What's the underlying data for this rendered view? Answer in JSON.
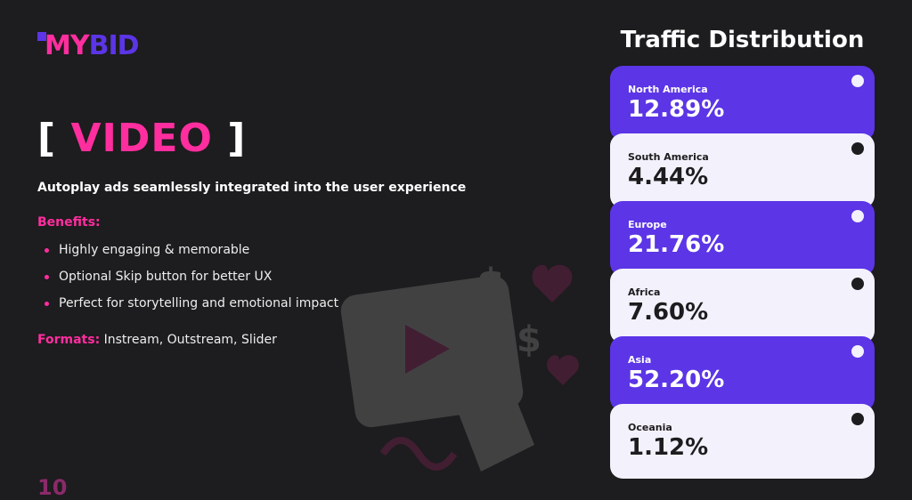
{
  "logo": {
    "part1": "MY",
    "part2": "BID"
  },
  "slide": {
    "title_open": "[",
    "title_word": "VIDEO",
    "title_close": "]",
    "subtitle": "Autoplay ads seamlessly integrated into the user experience",
    "benefits_label": "Benefits:",
    "benefits": [
      "Highly engaging & memorable",
      "Optional Skip button for better UX",
      "Perfect for storytelling and emotional impact"
    ],
    "formats_label": "Formats:",
    "formats_value": "Instream, Outstream, Slider",
    "page_number": "10"
  },
  "traffic": {
    "title": "Traffic Distribution",
    "regions": [
      {
        "name": "North America",
        "value": "12.89%"
      },
      {
        "name": "South America",
        "value": "4.44%"
      },
      {
        "name": "Europe",
        "value": "21.76%"
      },
      {
        "name": "Africa",
        "value": "7.60%"
      },
      {
        "name": "Asia",
        "value": "52.20%"
      },
      {
        "name": "Oceania",
        "value": "1.12%"
      }
    ]
  },
  "colors": {
    "accent_pink": "#ff2e9f",
    "accent_purple": "#5b35e6",
    "background": "#1d1c1e",
    "card_light": "#f3f1fb"
  }
}
